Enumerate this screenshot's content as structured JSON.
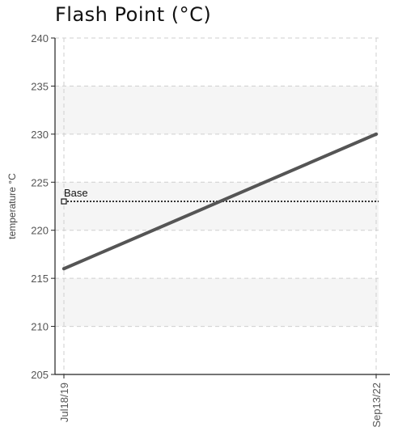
{
  "chart_data": {
    "type": "line",
    "title": "Flash Point (°C)",
    "ylabel": "temperature °C",
    "xlabel": "",
    "ylim": [
      205,
      240
    ],
    "yticks": [
      205,
      210,
      215,
      220,
      225,
      230,
      235,
      240
    ],
    "categories": [
      "Jul18/19",
      "Sep13/22"
    ],
    "series": [
      {
        "values": [
          216,
          230
        ],
        "color": "#555555"
      }
    ],
    "baseline": {
      "label": "Base",
      "value": 223,
      "color": "#333333"
    },
    "grid": true,
    "band_color": "#f5f5f5"
  }
}
